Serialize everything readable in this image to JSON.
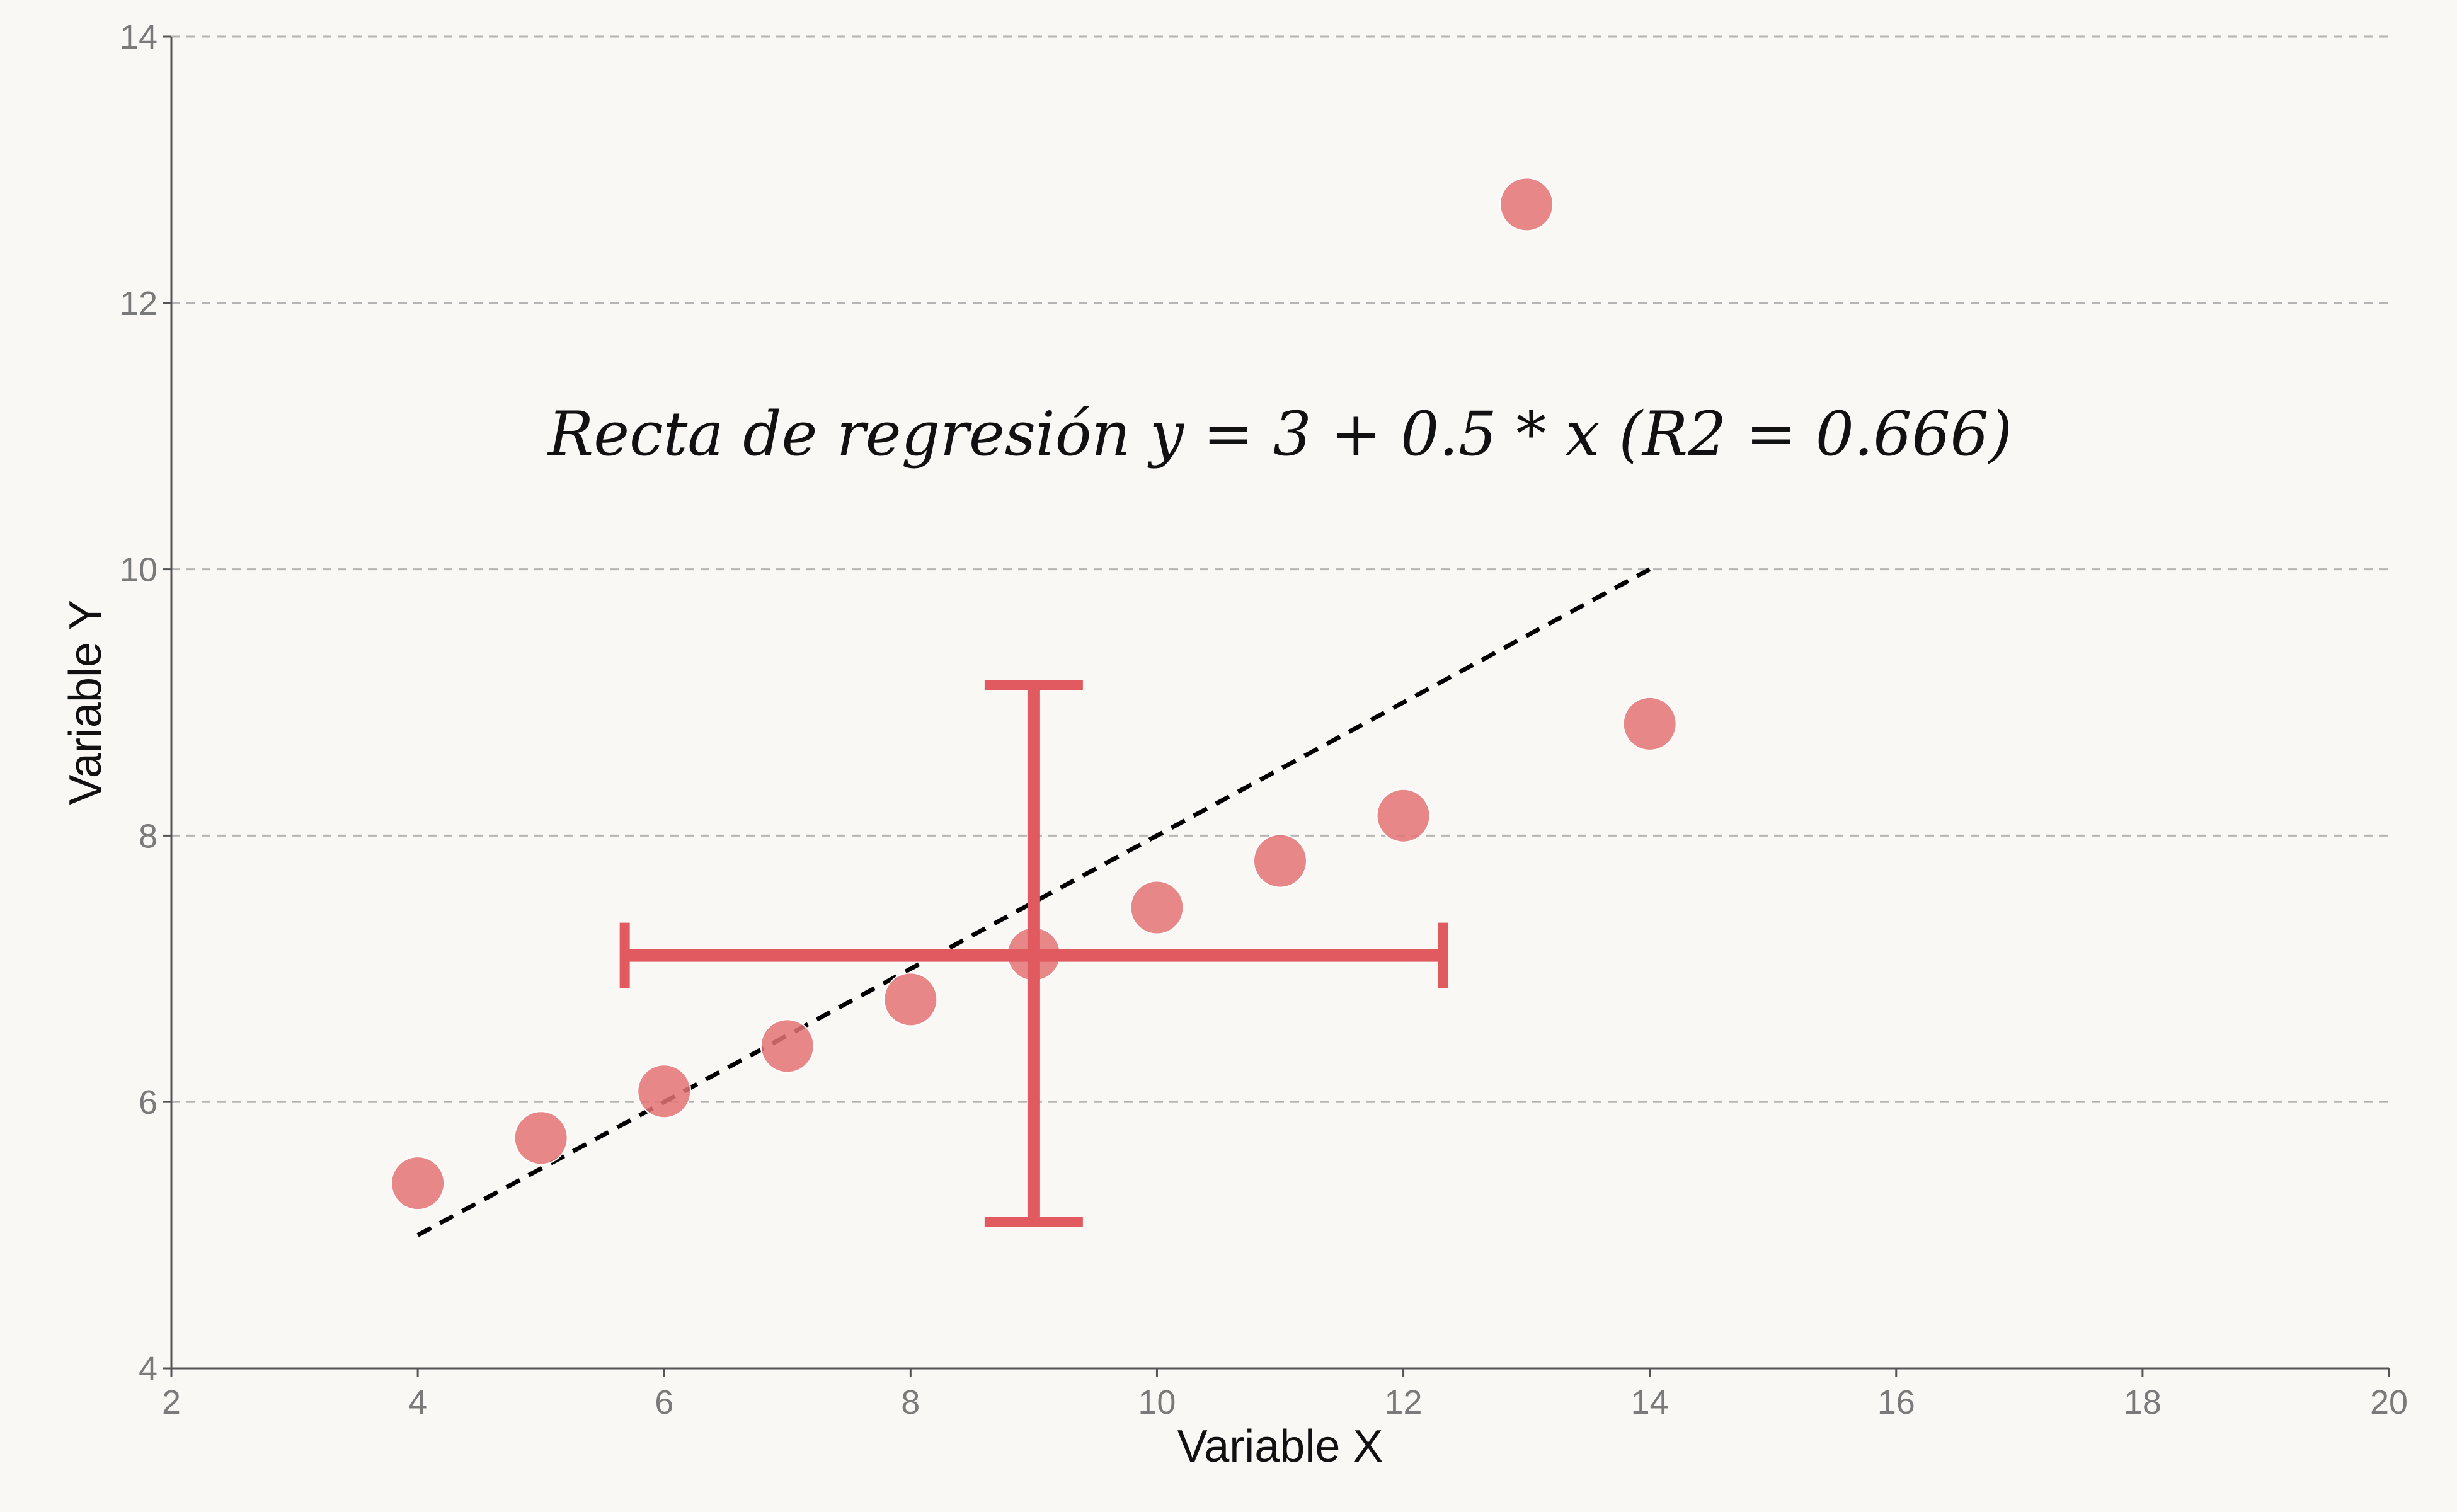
{
  "chart_data": {
    "type": "scatter",
    "title": "",
    "xlabel": "Variable X",
    "ylabel": "Variable Y",
    "xlim": [
      2,
      20
    ],
    "ylim": [
      4,
      14
    ],
    "xticks": [
      2,
      4,
      6,
      8,
      10,
      12,
      14,
      16,
      18,
      20
    ],
    "yticks": [
      4,
      6,
      8,
      10,
      12,
      14
    ],
    "grid": "horizontal dashed",
    "series": [
      {
        "x": [
          4,
          5,
          6,
          7,
          8,
          9,
          10,
          11,
          12,
          13,
          14
        ],
        "y": [
          5.39,
          5.73,
          6.08,
          6.42,
          6.77,
          7.11,
          7.46,
          7.81,
          8.15,
          12.74,
          8.84
        ],
        "color": "#e57373"
      }
    ],
    "regression_line": {
      "intercept": 3,
      "slope": 0.5,
      "x_range": [
        4,
        14
      ],
      "color": "#000000",
      "style": "dashed"
    },
    "error_cross": {
      "center": [
        9,
        7.1
      ],
      "x_range": [
        5.68,
        12.32
      ],
      "y_range": [
        5.1,
        9.13
      ],
      "color": "#e05a60"
    },
    "annotation": {
      "text": "Recta de regresión y = 3 + 0.5 * x (R2 = 0.666)",
      "x": 11,
      "y": 11
    }
  }
}
